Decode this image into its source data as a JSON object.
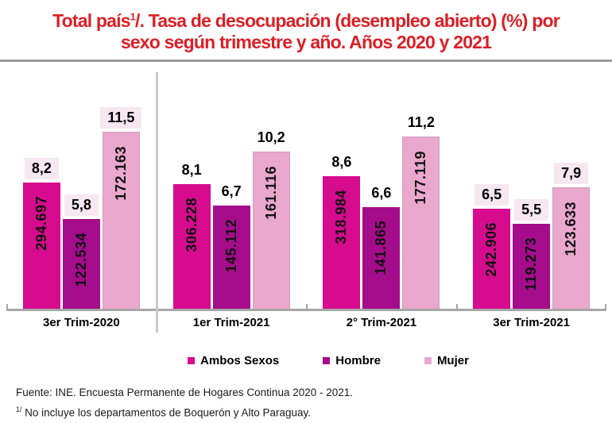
{
  "title": {
    "line1_pre": "Total país",
    "line1_sup": "1",
    "line1_post": "/. Tasa de desocupación (desempleo abierto) (%) por",
    "line2": "sexo según trimestre y año. Años 2020 y 2021"
  },
  "colors": {
    "title_red": "#DB1F26",
    "title_rule_gray": "#999999",
    "axis_gray": "#A6A6A6",
    "separator_gray": "#C9C9C9",
    "label_box_pink": "#F7E7F1",
    "ambos_sexos": "#D60B8E",
    "hombre": "#A50C8C",
    "mujer": "#EAA8CD"
  },
  "chart_data": {
    "type": "bar",
    "title": "Total país 1/. Tasa de desocupación (desempleo abierto) (%) por sexo según trimestre y año. Años 2020 y 2021",
    "xlabel": "",
    "ylabel": "",
    "ylim": [
      0,
      15.4
    ],
    "grid": false,
    "legend_position": "bottom",
    "categories": [
      "3er Trim-2020",
      "1er Trim-2021",
      "2° Trim-2021",
      "3er Trim-2021"
    ],
    "series": [
      {
        "name": "Ambos Sexos",
        "color": "#D60B8E",
        "values": [
          8.2,
          8.1,
          8.6,
          6.5
        ],
        "rate_labels": [
          "8,2",
          "8,1",
          "8,6",
          "6,5"
        ],
        "counts": [
          "294.697",
          "306.228",
          "318.984",
          "242.906"
        ]
      },
      {
        "name": "Hombre",
        "color": "#A50C8C",
        "values": [
          5.8,
          6.7,
          6.6,
          5.5
        ],
        "rate_labels": [
          "5,8",
          "6,7",
          "6,6",
          "5,5"
        ],
        "counts": [
          "122.534",
          "145.112",
          "141.865",
          "119.273"
        ]
      },
      {
        "name": "Mujer",
        "color": "#EAA8CD",
        "values": [
          11.5,
          10.2,
          11.2,
          7.9
        ],
        "rate_labels": [
          "11,5",
          "10,2",
          "11,2",
          "7,9"
        ],
        "counts": [
          "172.163",
          "161.116",
          "177.119",
          "123.633"
        ]
      }
    ],
    "highlight_label_groups": [
      0,
      3
    ]
  },
  "footer": {
    "source": "Fuente: INE. Encuesta Permanente de Hogares Continua 2020 - 2021.",
    "footnote_sup": "1/",
    "footnote_text": " No incluye los departamentos de Boquerón y Alto Paraguay."
  }
}
